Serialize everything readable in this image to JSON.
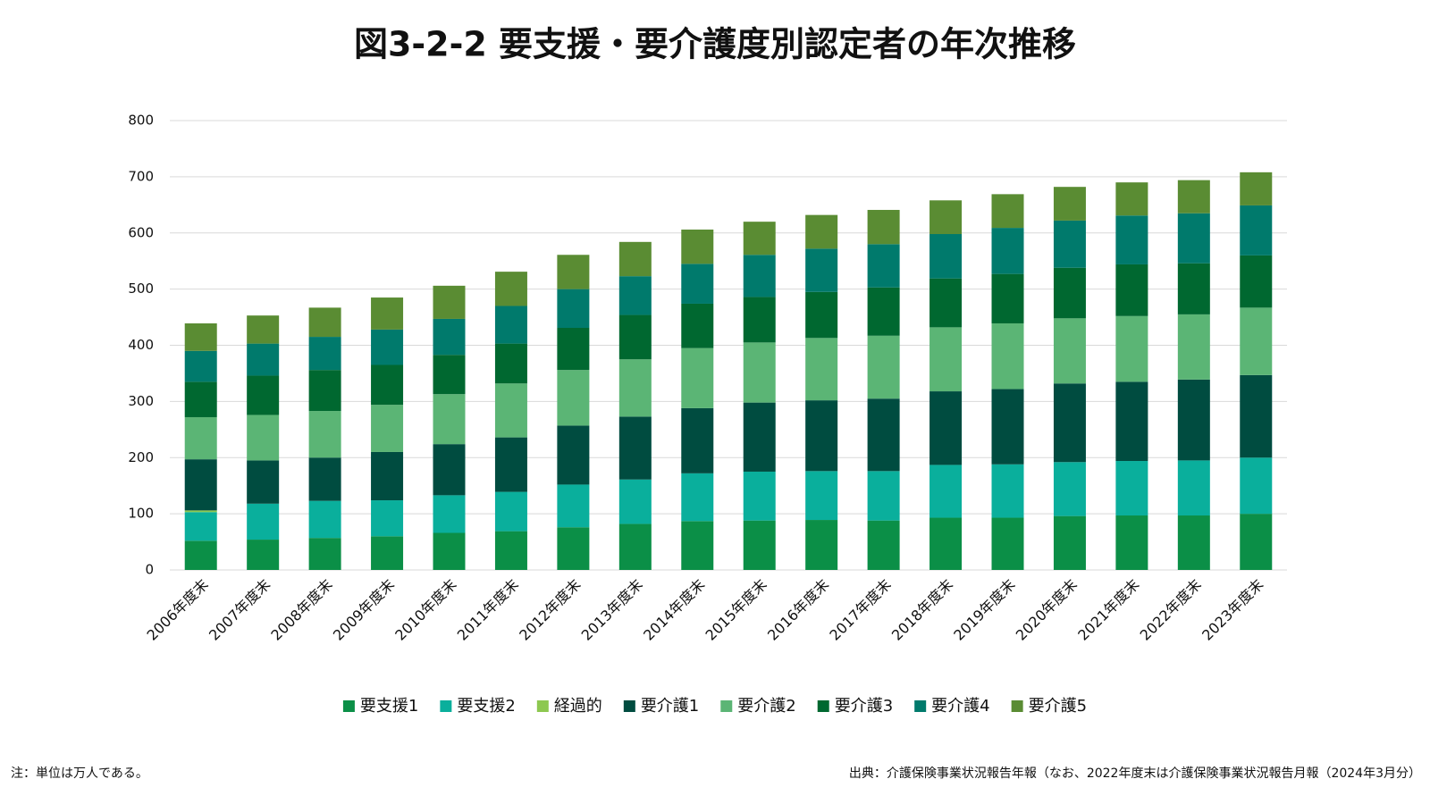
{
  "chart_data": {
    "type": "stacked-bar",
    "title": "図3-2-2 要支援・要介護度別認定者の年次推移",
    "categories": [
      "2006年度末",
      "2007年度末",
      "2008年度末",
      "2009年度末",
      "2010年度末",
      "2011年度末",
      "2012年度末",
      "2013年度末",
      "2014年度末",
      "2015年度末",
      "2016年度末",
      "2017年度末",
      "2018年度末",
      "2019年度末",
      "2020年度末",
      "2021年度末",
      "2022年度末",
      "2023年度末"
    ],
    "series": [
      {
        "name": "要支援1",
        "color": "#0b8f47",
        "values": [
          52,
          54,
          57,
          60,
          66,
          69,
          76,
          82,
          87,
          88,
          89,
          88,
          93,
          93,
          96,
          97,
          97,
          100
        ]
      },
      {
        "name": "要支援2",
        "color": "#0aaf9c",
        "values": [
          51,
          64,
          66,
          64,
          67,
          70,
          76,
          79,
          85,
          87,
          87,
          88,
          94,
          95,
          96,
          97,
          98,
          100
        ]
      },
      {
        "name": "経過的",
        "color": "#8dc850",
        "values": [
          3,
          0,
          0,
          0,
          0,
          0,
          0,
          0,
          0,
          0,
          0,
          0,
          0,
          0,
          0,
          0,
          0,
          0
        ]
      },
      {
        "name": "要介護1",
        "color": "#004c40",
        "values": [
          91,
          77,
          77,
          86,
          91,
          97,
          105,
          112,
          116,
          123,
          126,
          129,
          131,
          134,
          140,
          141,
          144,
          147
        ]
      },
      {
        "name": "要介護2",
        "color": "#5bb575",
        "values": [
          75,
          81,
          83,
          84,
          89,
          96,
          99,
          102,
          107,
          107,
          111,
          112,
          114,
          117,
          116,
          117,
          116,
          120
        ]
      },
      {
        "name": "要介護3",
        "color": "#006830",
        "values": [
          63,
          70,
          73,
          71,
          70,
          71,
          75,
          79,
          79,
          81,
          82,
          86,
          87,
          88,
          90,
          92,
          91,
          93
        ]
      },
      {
        "name": "要介護4",
        "color": "#007a6c",
        "values": [
          55,
          57,
          59,
          63,
          64,
          67,
          69,
          69,
          71,
          75,
          77,
          77,
          79,
          82,
          84,
          87,
          89,
          89
        ]
      },
      {
        "name": "要介護5",
        "color": "#5a8c33",
        "values": [
          49,
          50,
          52,
          57,
          59,
          61,
          61,
          61,
          61,
          59,
          60,
          61,
          60,
          60,
          60,
          59,
          59,
          59
        ]
      }
    ],
    "ylim": [
      0,
      800
    ],
    "yticks": [
      0,
      100,
      200,
      300,
      400,
      500,
      600,
      700,
      800
    ],
    "grid": true,
    "legend": "bottom",
    "note": "注：単位は万人である。",
    "source": "出典：介護保険事業状況報告年報（なお、2022年度末は介護保険事業状況報告月報（2024年3月分）"
  }
}
